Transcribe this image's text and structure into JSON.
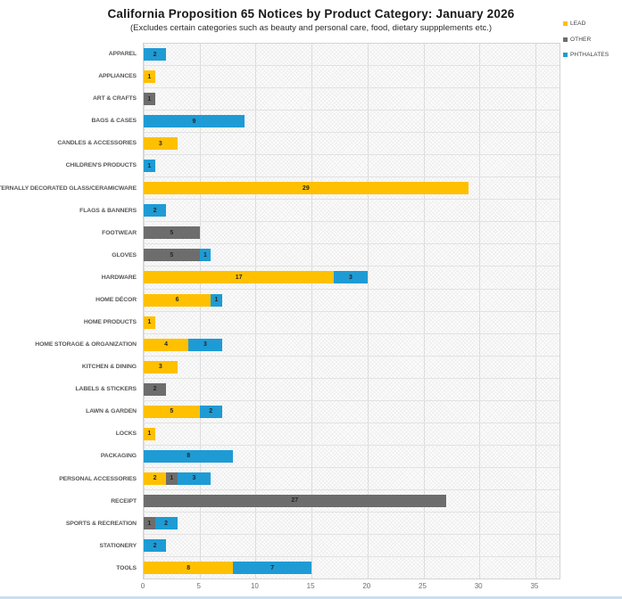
{
  "title": "California Proposition 65 Notices by Product Category: January 2026",
  "subtitle": "(Excludes certain categories such as beauty and personal care, food, dietary suppplements etc.)",
  "legend": {
    "items": [
      {
        "label": "LEAD",
        "color": "#FFC000"
      },
      {
        "label": "OTHER",
        "color": "#6D6D6D"
      },
      {
        "label": "PHTHALATES",
        "color": "#1E9BD5"
      }
    ]
  },
  "chart_data": {
    "type": "bar",
    "orientation": "horizontal",
    "stacked": true,
    "title": "California Proposition 65 Notices by Product Category: January 2026",
    "subtitle": "(Excludes certain categories such as beauty and personal care, food, dietary suppplements etc.)",
    "xlabel": "",
    "ylabel": "",
    "xlim": [
      0,
      35
    ],
    "xticks": [
      0,
      5,
      10,
      15,
      20,
      25,
      30,
      35
    ],
    "grid": true,
    "legend_position": "top-right",
    "categories": [
      "APPAREL",
      "APPLIANCES",
      "ART & CRAFTS",
      "BAGS & CASES",
      "CANDLES & ACCESSORIES",
      "CHILDREN'S PRODUCTS",
      "EXTERNALLY DECORATED GLASS/CERAMICWARE",
      "FLAGS & BANNERS",
      "FOOTWEAR",
      "GLOVES",
      "HARDWARE",
      "HOME DÉCOR",
      "HOME PRODUCTS",
      "HOME STORAGE & ORGANIZATION",
      "KITCHEN & DINING",
      "LABELS & STICKERS",
      "LAWN & GARDEN",
      "LOCKS",
      "PACKAGING",
      "PERSONAL ACCESSORIES",
      "RECEIPT",
      "SPORTS & RECREATION",
      "STATIONERY",
      "TOOLS"
    ],
    "series": [
      {
        "name": "LEAD",
        "color": "#FFC000",
        "values": [
          0,
          1,
          0,
          0,
          3,
          0,
          29,
          0,
          0,
          0,
          17,
          6,
          1,
          4,
          3,
          0,
          5,
          1,
          0,
          2,
          0,
          0,
          0,
          8
        ]
      },
      {
        "name": "OTHER",
        "color": "#6D6D6D",
        "values": [
          0,
          0,
          1,
          0,
          0,
          0,
          0,
          0,
          5,
          5,
          0,
          0,
          0,
          0,
          0,
          2,
          0,
          0,
          0,
          1,
          27,
          1,
          0,
          0
        ]
      },
      {
        "name": "PHTHALATES",
        "color": "#1E9BD5",
        "values": [
          2,
          0,
          0,
          9,
          0,
          1,
          0,
          2,
          0,
          1,
          3,
          1,
          0,
          3,
          0,
          0,
          2,
          0,
          8,
          3,
          0,
          2,
          2,
          7
        ]
      }
    ]
  }
}
